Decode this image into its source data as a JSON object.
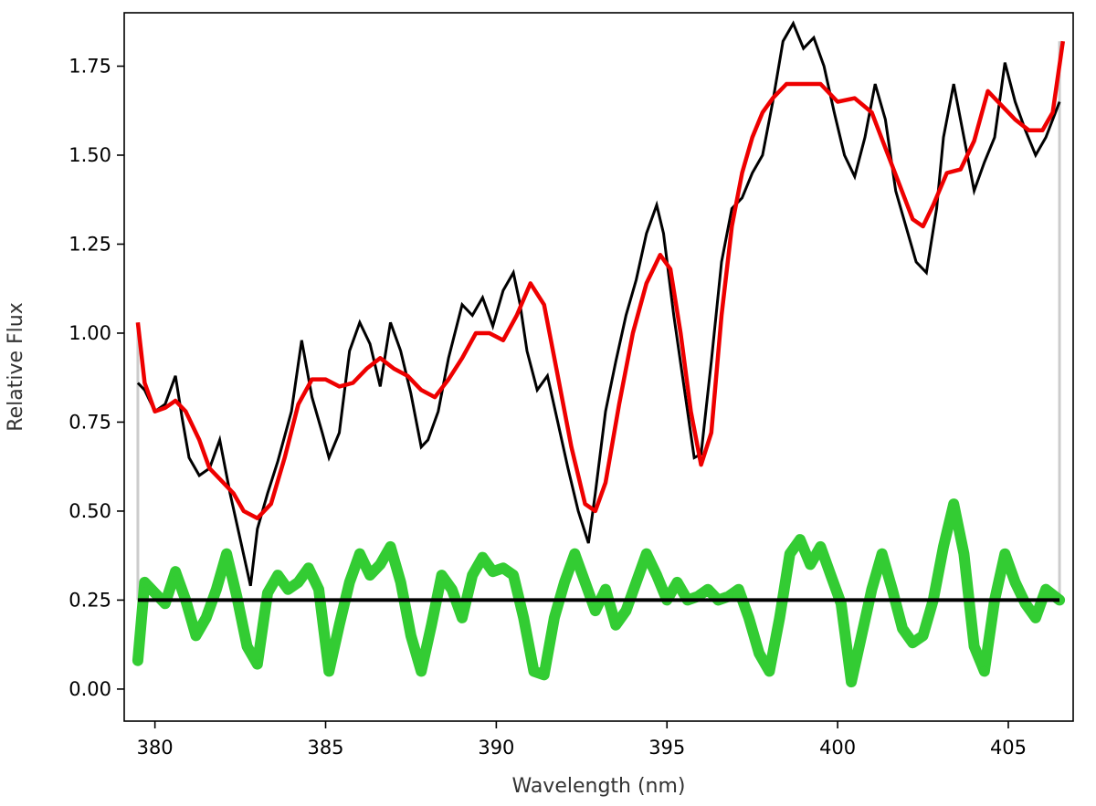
{
  "chart_data": {
    "type": "line",
    "title": "",
    "xlabel": "Wavelength (nm)",
    "ylabel": "Relative Flux",
    "xlim": [
      379.1,
      406.9
    ],
    "ylim": [
      -0.09,
      1.9
    ],
    "xticks": [
      380,
      385,
      390,
      395,
      400,
      405
    ],
    "xtick_labels": [
      "380",
      "385",
      "390",
      "395",
      "400",
      "405"
    ],
    "yticks": [
      0.0,
      0.25,
      0.5,
      0.75,
      1.0,
      1.25,
      1.5,
      1.75
    ],
    "ytick_labels": [
      "0.00",
      "0.25",
      "0.50",
      "0.75",
      "1.00",
      "1.25",
      "1.50",
      "1.75"
    ],
    "grid": false,
    "legend": "none",
    "colors": {
      "observed": "#000000",
      "model": "#ee0000",
      "residual": "#33cc33",
      "baseline": "#000000",
      "edge": "#cccccc"
    },
    "series": [
      {
        "key": "observed",
        "x": [
          379.5,
          379.7,
          380.0,
          380.3,
          380.6,
          380.8,
          381.0,
          381.3,
          381.6,
          381.9,
          382.2,
          382.5,
          382.8,
          383.0,
          383.3,
          383.6,
          384.0,
          384.3,
          384.6,
          384.9,
          385.1,
          385.4,
          385.7,
          386.0,
          386.3,
          386.6,
          386.9,
          387.2,
          387.5,
          387.8,
          388.0,
          388.3,
          388.6,
          389.0,
          389.3,
          389.6,
          389.9,
          390.2,
          390.5,
          390.7,
          390.9,
          391.2,
          391.5,
          391.8,
          392.1,
          392.4,
          392.7,
          392.9,
          393.2,
          393.5,
          393.8,
          394.1,
          394.4,
          394.7,
          394.9,
          395.2,
          395.5,
          395.8,
          396.0,
          396.3,
          396.6,
          396.9,
          397.2,
          397.5,
          397.8,
          398.1,
          398.4,
          398.7,
          399.0,
          399.3,
          399.6,
          399.9,
          400.2,
          400.5,
          400.8,
          401.1,
          401.4,
          401.7,
          402.0,
          402.3,
          402.6,
          402.9,
          403.1,
          403.4,
          403.7,
          404.0,
          404.3,
          404.6,
          404.9,
          405.2,
          405.5,
          405.8,
          406.1,
          406.5
        ],
        "y": [
          0.86,
          0.84,
          0.78,
          0.8,
          0.88,
          0.76,
          0.65,
          0.6,
          0.62,
          0.7,
          0.55,
          0.42,
          0.29,
          0.45,
          0.55,
          0.64,
          0.78,
          0.98,
          0.82,
          0.72,
          0.65,
          0.72,
          0.95,
          1.03,
          0.97,
          0.85,
          1.03,
          0.95,
          0.83,
          0.68,
          0.7,
          0.78,
          0.93,
          1.08,
          1.05,
          1.1,
          1.02,
          1.12,
          1.17,
          1.08,
          0.95,
          0.84,
          0.88,
          0.75,
          0.62,
          0.5,
          0.41,
          0.55,
          0.78,
          0.92,
          1.05,
          1.15,
          1.28,
          1.36,
          1.28,
          1.05,
          0.85,
          0.65,
          0.66,
          0.92,
          1.2,
          1.35,
          1.38,
          1.45,
          1.5,
          1.65,
          1.82,
          1.87,
          1.8,
          1.83,
          1.75,
          1.62,
          1.5,
          1.44,
          1.55,
          1.7,
          1.6,
          1.4,
          1.3,
          1.2,
          1.17,
          1.35,
          1.55,
          1.7,
          1.55,
          1.4,
          1.48,
          1.55,
          1.76,
          1.65,
          1.57,
          1.5,
          1.55,
          1.65
        ]
      },
      {
        "key": "model",
        "x": [
          379.5,
          379.7,
          380.0,
          380.3,
          380.6,
          380.9,
          381.3,
          381.6,
          382.0,
          382.3,
          382.6,
          383.0,
          383.4,
          383.8,
          384.2,
          384.6,
          385.0,
          385.4,
          385.8,
          386.2,
          386.6,
          387.0,
          387.4,
          387.8,
          388.2,
          388.6,
          389.0,
          389.4,
          389.8,
          390.2,
          390.6,
          391.0,
          391.4,
          391.8,
          392.2,
          392.6,
          392.9,
          393.2,
          393.6,
          394.0,
          394.4,
          394.8,
          395.1,
          395.4,
          395.7,
          396.0,
          396.3,
          396.6,
          396.9,
          397.2,
          397.5,
          397.8,
          398.1,
          398.5,
          399.0,
          399.5,
          400.0,
          400.5,
          401.0,
          401.4,
          401.8,
          402.2,
          402.5,
          402.8,
          403.2,
          403.6,
          404.0,
          404.4,
          404.8,
          405.2,
          405.6,
          406.0,
          406.3,
          406.6
        ],
        "y": [
          1.03,
          0.86,
          0.78,
          0.79,
          0.81,
          0.78,
          0.7,
          0.62,
          0.58,
          0.55,
          0.5,
          0.48,
          0.52,
          0.65,
          0.8,
          0.87,
          0.87,
          0.85,
          0.86,
          0.9,
          0.93,
          0.9,
          0.88,
          0.84,
          0.82,
          0.87,
          0.93,
          1.0,
          1.0,
          0.98,
          1.05,
          1.14,
          1.08,
          0.88,
          0.68,
          0.52,
          0.5,
          0.58,
          0.8,
          1.0,
          1.14,
          1.22,
          1.18,
          1.0,
          0.78,
          0.63,
          0.72,
          1.05,
          1.3,
          1.45,
          1.55,
          1.62,
          1.66,
          1.7,
          1.7,
          1.7,
          1.65,
          1.66,
          1.62,
          1.52,
          1.42,
          1.32,
          1.3,
          1.36,
          1.45,
          1.46,
          1.54,
          1.68,
          1.64,
          1.6,
          1.57,
          1.57,
          1.62,
          1.82
        ]
      },
      {
        "key": "residual",
        "x": [
          379.5,
          379.7,
          380.0,
          380.3,
          380.6,
          380.9,
          381.2,
          381.5,
          381.8,
          382.1,
          382.4,
          382.7,
          383.0,
          383.3,
          383.6,
          383.9,
          384.2,
          384.5,
          384.8,
          385.1,
          385.4,
          385.7,
          386.0,
          386.3,
          386.6,
          386.9,
          387.2,
          387.5,
          387.8,
          388.1,
          388.4,
          388.7,
          389.0,
          389.3,
          389.6,
          389.9,
          390.2,
          390.5,
          390.8,
          391.1,
          391.4,
          391.7,
          392.0,
          392.3,
          392.6,
          392.9,
          393.2,
          393.5,
          393.8,
          394.1,
          394.4,
          394.7,
          395.0,
          395.3,
          395.6,
          395.9,
          396.2,
          396.5,
          396.8,
          397.1,
          397.4,
          397.7,
          398.0,
          398.3,
          398.6,
          398.9,
          399.2,
          399.5,
          399.8,
          400.1,
          400.4,
          400.7,
          401.0,
          401.3,
          401.6,
          401.9,
          402.2,
          402.5,
          402.8,
          403.1,
          403.4,
          403.7,
          404.0,
          404.3,
          404.6,
          404.9,
          405.2,
          405.5,
          405.8,
          406.1,
          406.5
        ],
        "y": [
          0.08,
          0.3,
          0.27,
          0.24,
          0.33,
          0.25,
          0.15,
          0.2,
          0.28,
          0.38,
          0.26,
          0.12,
          0.07,
          0.27,
          0.32,
          0.28,
          0.3,
          0.34,
          0.28,
          0.05,
          0.18,
          0.3,
          0.38,
          0.32,
          0.35,
          0.4,
          0.3,
          0.15,
          0.05,
          0.18,
          0.32,
          0.28,
          0.2,
          0.32,
          0.37,
          0.33,
          0.34,
          0.32,
          0.2,
          0.05,
          0.04,
          0.2,
          0.3,
          0.38,
          0.3,
          0.22,
          0.28,
          0.18,
          0.22,
          0.3,
          0.38,
          0.32,
          0.25,
          0.3,
          0.25,
          0.26,
          0.28,
          0.25,
          0.26,
          0.28,
          0.2,
          0.1,
          0.05,
          0.2,
          0.38,
          0.42,
          0.35,
          0.4,
          0.32,
          0.24,
          0.02,
          0.15,
          0.28,
          0.38,
          0.28,
          0.17,
          0.13,
          0.15,
          0.25,
          0.4,
          0.52,
          0.38,
          0.12,
          0.05,
          0.25,
          0.38,
          0.3,
          0.24,
          0.2,
          0.28,
          0.25
        ]
      }
    ],
    "baseline": {
      "y": 0.25,
      "x": [
        379.5,
        406.5
      ]
    },
    "edges": [
      379.5,
      406.5
    ]
  }
}
